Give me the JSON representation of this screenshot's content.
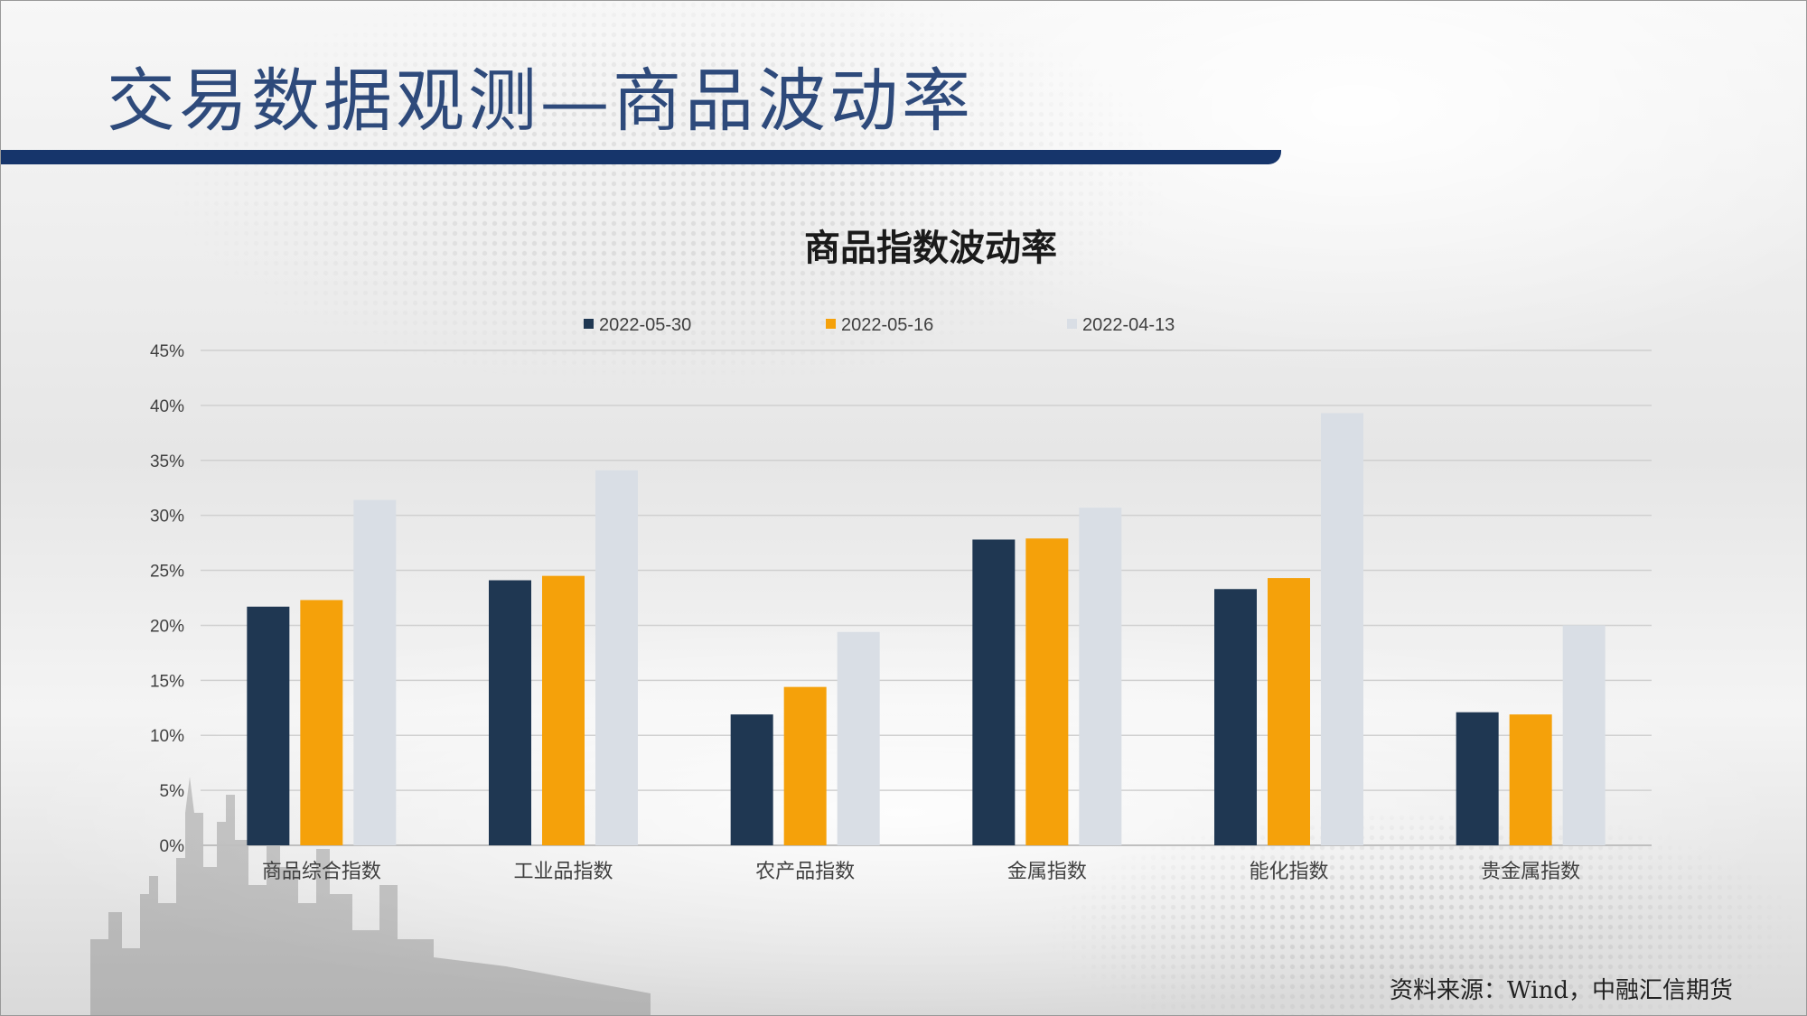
{
  "title": "交易数据观测—商品波动率",
  "source": "资料来源：Wind，中融汇信期货",
  "colors": {
    "title": "#2e4a7b",
    "title_bar": "#16356b",
    "grid": "#d0d0d0",
    "axis_text": "#404040"
  },
  "chart_data": {
    "type": "bar",
    "title": "商品指数波动率",
    "categories": [
      "商品综合指数",
      "工业品指数",
      "农产品指数",
      "金属指数",
      "能化指数",
      "贵金属指数"
    ],
    "series": [
      {
        "name": "2022-05-30",
        "color": "#1f3752",
        "values": [
          21.7,
          24.1,
          11.9,
          27.8,
          23.3,
          12.1
        ]
      },
      {
        "name": "2022-05-16",
        "color": "#f5a10a",
        "values": [
          22.3,
          24.5,
          14.4,
          27.9,
          24.3,
          11.9
        ]
      },
      {
        "name": "2022-04-13",
        "color": "#d9dee5",
        "values": [
          31.4,
          34.1,
          19.4,
          30.7,
          39.3,
          20.0
        ]
      }
    ],
    "yticks": [
      "0%",
      "5%",
      "10%",
      "15%",
      "20%",
      "25%",
      "30%",
      "35%",
      "40%",
      "45%"
    ],
    "ylim": [
      0,
      45
    ],
    "unit": "%",
    "grid": true,
    "legend": "top-center"
  }
}
